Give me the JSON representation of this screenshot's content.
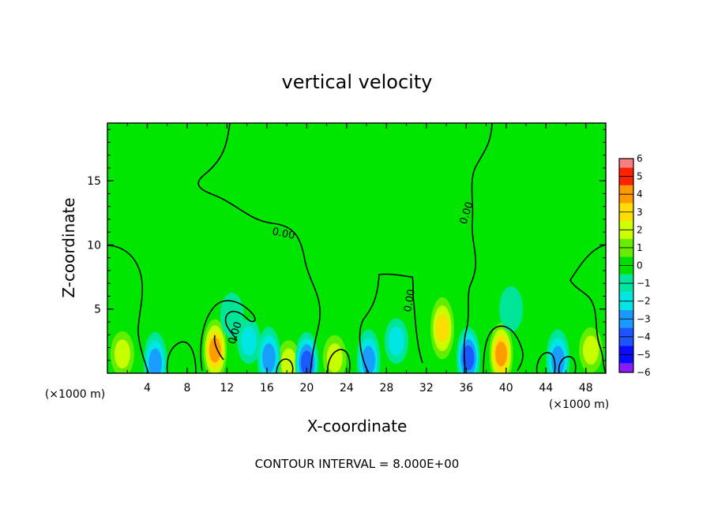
{
  "chart_data": {
    "type": "heatmap",
    "title": "vertical velocity",
    "xlabel": "X-coordinate",
    "ylabel": "Z-coordinate",
    "x_unit_left": "(×1000 m)",
    "x_unit_right": "(×1000 m)",
    "xlim": [
      0,
      50
    ],
    "ylim": [
      0,
      19.5
    ],
    "x_ticks": [
      4,
      8,
      12,
      16,
      20,
      24,
      28,
      32,
      36,
      40,
      44,
      48
    ],
    "y_ticks": [
      5,
      10,
      15
    ],
    "colorbar_levels": [
      -6,
      -5,
      -4,
      -3,
      -2,
      -1,
      0,
      1,
      2,
      3,
      4,
      5,
      6
    ],
    "colorbar_colors": [
      "#8b1aff",
      "#0a0aff",
      "#1a55ff",
      "#1a99ff",
      "#00e6e6",
      "#00e6a0",
      "#00e000",
      "#66ee00",
      "#ccff00",
      "#ffdd00",
      "#ff9900",
      "#ff2200",
      "#f77f7f"
    ],
    "background_color": "#00e600",
    "contour_interval": "CONTOUR INTERVAL = 8.000E+00",
    "contour_labels": [
      "0.00",
      "0.00",
      "0.00",
      "0.00"
    ],
    "contour_level": 0.0,
    "features": [
      {
        "x": 1.5,
        "z": 1.5,
        "w": 2
      },
      {
        "x": 10.8,
        "z": 1.8,
        "w": 4
      },
      {
        "x": 33.6,
        "z": 3.5,
        "w": 3
      },
      {
        "x": 39.5,
        "z": 1.5,
        "w": 4
      },
      {
        "x": 48.5,
        "z": 1.8,
        "w": 2
      },
      {
        "x": 22.8,
        "z": 1.2,
        "w": 2
      },
      {
        "x": 18.2,
        "z": 0.8,
        "w": 2
      },
      {
        "x": 4.8,
        "z": 0.8,
        "w": -3
      },
      {
        "x": 14.2,
        "z": 2.5,
        "w": -2
      },
      {
        "x": 16.2,
        "z": 1.2,
        "w": -3
      },
      {
        "x": 20,
        "z": 0.8,
        "w": -4
      },
      {
        "x": 26.2,
        "z": 1.0,
        "w": -3
      },
      {
        "x": 29,
        "z": 2.5,
        "w": -2
      },
      {
        "x": 36.2,
        "z": 1.2,
        "w": -4
      },
      {
        "x": 45.2,
        "z": 1.0,
        "w": -3
      },
      {
        "x": 40.5,
        "z": 5,
        "w": -1
      },
      {
        "x": 12.5,
        "z": 4.5,
        "w": -1
      }
    ]
  }
}
